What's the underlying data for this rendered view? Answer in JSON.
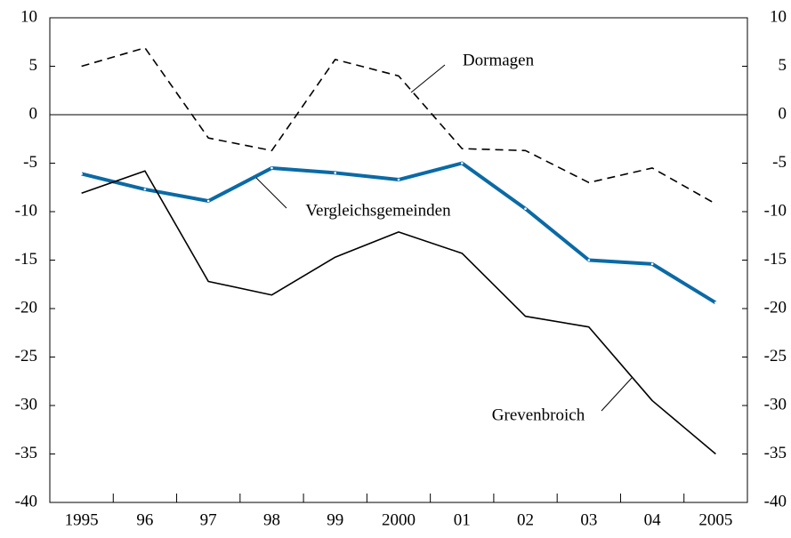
{
  "chart_data": {
    "type": "line",
    "categories": [
      "1995",
      "96",
      "97",
      "98",
      "99",
      "2000",
      "01",
      "02",
      "03",
      "04",
      "2005"
    ],
    "series": [
      {
        "name": "Dormagen",
        "color": "#000000",
        "dash": true,
        "values": [
          5.0,
          6.9,
          -2.4,
          -3.7,
          5.7,
          4.0,
          -3.5,
          -3.7,
          -7.0,
          -5.5,
          -9.2
        ]
      },
      {
        "name": "Vergleichsgemeinden",
        "color": "#0a6aa6",
        "dash": false,
        "values": [
          -6.1,
          -7.7,
          -8.9,
          -5.5,
          -6.0,
          -6.7,
          -5.0,
          -9.7,
          -15.0,
          -15.4,
          -19.4
        ]
      },
      {
        "name": "Grevenbroich",
        "color": "#000000",
        "dash": false,
        "values": [
          -8.1,
          -5.8,
          -17.2,
          -18.6,
          -14.7,
          -12.1,
          -14.3,
          -20.8,
          -21.9,
          -29.5,
          -35.0
        ]
      }
    ],
    "ylim": [
      -40,
      10
    ],
    "yticks": [
      10,
      5,
      0,
      -5,
      -10,
      -15,
      -20,
      -25,
      -30,
      -35,
      -40
    ],
    "y2lim": [
      -40,
      10
    ],
    "y2ticks": [
      10,
      5,
      0,
      -5,
      -10,
      -15,
      -20,
      -25,
      -30,
      -35,
      -40
    ]
  }
}
